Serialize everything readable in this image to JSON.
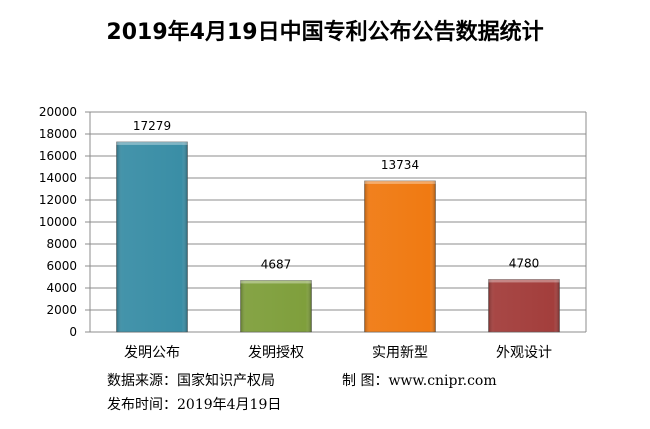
{
  "chart_data": {
    "type": "bar",
    "title": "2019年4月19日中国专利公布公告数据统计",
    "categories": [
      "发明公布",
      "发明授权",
      "实用新型",
      "外观设计"
    ],
    "values": [
      17279,
      4687,
      13734,
      4780
    ],
    "colors": [
      "#3a8ea6",
      "#7f9f3c",
      "#f07a12",
      "#a33e3c"
    ],
    "xlabel": "",
    "ylabel": "",
    "ylim": [
      0,
      20000
    ],
    "yticks": [
      0,
      2000,
      4000,
      6000,
      8000,
      10000,
      12000,
      14000,
      16000,
      18000,
      20000
    ],
    "grid": true
  },
  "footer": {
    "source": "数据来源：国家知识产权局",
    "maker": "制 图：www.cnipr.com",
    "date": "发布时间：2019年4月19日"
  }
}
